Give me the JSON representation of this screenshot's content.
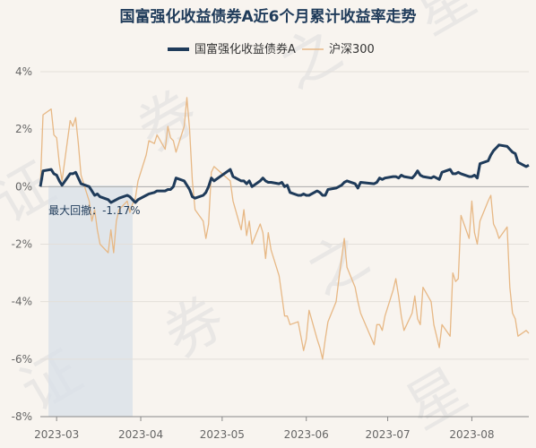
{
  "chart_data": {
    "type": "line",
    "title": "国富强化收益债券A近6个月累计收益率走势",
    "legend_position": "top-center",
    "grid": "horizontal",
    "ylim": [
      -8,
      4
    ],
    "yticks": [
      4,
      2,
      0,
      -2,
      -4,
      -6,
      -8
    ],
    "ytick_labels": [
      "4%",
      "2%",
      "0%",
      "-2%",
      "-4%",
      "-6%",
      "-8%"
    ],
    "xlim": [
      "2023-02-23",
      "2023-08-22"
    ],
    "xtick_labels": [
      "2023-03",
      "2023-04",
      "2023-05",
      "2023-06",
      "2023-07",
      "2023-08"
    ],
    "xtick_dates": [
      "2023-03-01",
      "2023-04-01",
      "2023-05-01",
      "2023-06-01",
      "2023-07-01",
      "2023-08-01"
    ],
    "series": [
      {
        "name": "国富强化收益债券A",
        "color": "#1f3b5a",
        "points": [
          [
            "2023-02-23",
            0.0
          ],
          [
            "2023-02-24",
            0.55
          ],
          [
            "2023-02-27",
            0.6
          ],
          [
            "2023-02-28",
            0.45
          ],
          [
            "2023-03-01",
            0.4
          ],
          [
            "2023-03-02",
            0.2
          ],
          [
            "2023-03-03",
            0.05
          ],
          [
            "2023-03-06",
            0.45
          ],
          [
            "2023-03-07",
            0.45
          ],
          [
            "2023-03-08",
            0.5
          ],
          [
            "2023-03-09",
            0.3
          ],
          [
            "2023-03-10",
            0.1
          ],
          [
            "2023-03-13",
            0.0
          ],
          [
            "2023-03-14",
            -0.15
          ],
          [
            "2023-03-15",
            -0.3
          ],
          [
            "2023-03-16",
            -0.25
          ],
          [
            "2023-03-17",
            -0.35
          ],
          [
            "2023-03-20",
            -0.45
          ],
          [
            "2023-03-21",
            -0.55
          ],
          [
            "2023-03-22",
            -0.5
          ],
          [
            "2023-03-23",
            -0.45
          ],
          [
            "2023-03-24",
            -0.4
          ],
          [
            "2023-03-27",
            -0.3
          ],
          [
            "2023-03-28",
            -0.35
          ],
          [
            "2023-03-29",
            -0.45
          ],
          [
            "2023-03-30",
            -0.55
          ],
          [
            "2023-03-31",
            -0.45
          ],
          [
            "2023-04-03",
            -0.3
          ],
          [
            "2023-04-04",
            -0.25
          ],
          [
            "2023-04-06",
            -0.2
          ],
          [
            "2023-04-07",
            -0.15
          ],
          [
            "2023-04-10",
            -0.15
          ],
          [
            "2023-04-11",
            -0.1
          ],
          [
            "2023-04-12",
            -0.1
          ],
          [
            "2023-04-13",
            0.0
          ],
          [
            "2023-04-14",
            0.3
          ],
          [
            "2023-04-17",
            0.2
          ],
          [
            "2023-04-18",
            0.05
          ],
          [
            "2023-04-19",
            -0.1
          ],
          [
            "2023-04-20",
            -0.35
          ],
          [
            "2023-04-21",
            -0.4
          ],
          [
            "2023-04-24",
            -0.3
          ],
          [
            "2023-04-25",
            -0.2
          ],
          [
            "2023-04-26",
            0.0
          ],
          [
            "2023-04-27",
            0.3
          ],
          [
            "2023-04-28",
            0.2
          ],
          [
            "2023-05-04",
            0.6
          ],
          [
            "2023-05-05",
            0.35
          ],
          [
            "2023-05-08",
            0.2
          ],
          [
            "2023-05-09",
            0.2
          ],
          [
            "2023-05-10",
            0.1
          ],
          [
            "2023-05-11",
            0.2
          ],
          [
            "2023-05-12",
            0.0
          ],
          [
            "2023-05-15",
            0.2
          ],
          [
            "2023-05-16",
            0.3
          ],
          [
            "2023-05-17",
            0.2
          ],
          [
            "2023-05-18",
            0.15
          ],
          [
            "2023-05-19",
            0.15
          ],
          [
            "2023-05-22",
            0.1
          ],
          [
            "2023-05-23",
            0.15
          ],
          [
            "2023-05-24",
            0.0
          ],
          [
            "2023-05-25",
            0.05
          ],
          [
            "2023-05-26",
            -0.2
          ],
          [
            "2023-05-29",
            -0.3
          ],
          [
            "2023-05-30",
            -0.3
          ],
          [
            "2023-05-31",
            -0.25
          ],
          [
            "2023-06-01",
            -0.3
          ],
          [
            "2023-06-02",
            -0.3
          ],
          [
            "2023-06-05",
            -0.15
          ],
          [
            "2023-06-06",
            -0.2
          ],
          [
            "2023-06-07",
            -0.3
          ],
          [
            "2023-06-08",
            -0.3
          ],
          [
            "2023-06-09",
            -0.1
          ],
          [
            "2023-06-12",
            -0.05
          ],
          [
            "2023-06-13",
            0.0
          ],
          [
            "2023-06-14",
            0.05
          ],
          [
            "2023-06-15",
            0.15
          ],
          [
            "2023-06-16",
            0.2
          ],
          [
            "2023-06-19",
            0.1
          ],
          [
            "2023-06-20",
            -0.05
          ],
          [
            "2023-06-21",
            0.15
          ],
          [
            "2023-06-26",
            0.1
          ],
          [
            "2023-06-27",
            0.15
          ],
          [
            "2023-06-28",
            0.3
          ],
          [
            "2023-06-29",
            0.25
          ],
          [
            "2023-06-30",
            0.3
          ],
          [
            "2023-07-03",
            0.35
          ],
          [
            "2023-07-04",
            0.35
          ],
          [
            "2023-07-05",
            0.3
          ],
          [
            "2023-07-06",
            0.4
          ],
          [
            "2023-07-07",
            0.35
          ],
          [
            "2023-07-10",
            0.3
          ],
          [
            "2023-07-11",
            0.4
          ],
          [
            "2023-07-12",
            0.55
          ],
          [
            "2023-07-13",
            0.4
          ],
          [
            "2023-07-14",
            0.35
          ],
          [
            "2023-07-17",
            0.3
          ],
          [
            "2023-07-18",
            0.35
          ],
          [
            "2023-07-19",
            0.3
          ],
          [
            "2023-07-20",
            0.25
          ],
          [
            "2023-07-21",
            0.5
          ],
          [
            "2023-07-24",
            0.6
          ],
          [
            "2023-07-25",
            0.45
          ],
          [
            "2023-07-26",
            0.45
          ],
          [
            "2023-07-27",
            0.5
          ],
          [
            "2023-07-28",
            0.45
          ],
          [
            "2023-07-31",
            0.35
          ],
          [
            "2023-08-01",
            0.35
          ],
          [
            "2023-08-02",
            0.4
          ],
          [
            "2023-08-03",
            0.3
          ],
          [
            "2023-08-04",
            0.8
          ],
          [
            "2023-08-07",
            0.9
          ],
          [
            "2023-08-08",
            1.1
          ],
          [
            "2023-08-09",
            1.25
          ],
          [
            "2023-08-10",
            1.35
          ],
          [
            "2023-08-11",
            1.45
          ],
          [
            "2023-08-14",
            1.4
          ],
          [
            "2023-08-15",
            1.3
          ],
          [
            "2023-08-16",
            1.2
          ],
          [
            "2023-08-17",
            1.15
          ],
          [
            "2023-08-18",
            0.85
          ],
          [
            "2023-08-21",
            0.7
          ],
          [
            "2023-08-22",
            0.75
          ]
        ]
      },
      {
        "name": "沪深300",
        "color": "#e7b885",
        "points": [
          [
            "2023-02-23",
            0.0
          ],
          [
            "2023-02-24",
            2.5
          ],
          [
            "2023-02-27",
            2.7
          ],
          [
            "2023-02-28",
            1.8
          ],
          [
            "2023-03-01",
            1.7
          ],
          [
            "2023-03-02",
            0.8
          ],
          [
            "2023-03-03",
            0.2
          ],
          [
            "2023-03-06",
            2.3
          ],
          [
            "2023-03-07",
            2.1
          ],
          [
            "2023-03-08",
            2.4
          ],
          [
            "2023-03-09",
            1.5
          ],
          [
            "2023-03-10",
            0.4
          ],
          [
            "2023-03-13",
            -0.5
          ],
          [
            "2023-03-14",
            -1.2
          ],
          [
            "2023-03-15",
            -0.8
          ],
          [
            "2023-03-16",
            -1.5
          ],
          [
            "2023-03-17",
            -2.0
          ],
          [
            "2023-03-20",
            -2.3
          ],
          [
            "2023-03-21",
            -1.5
          ],
          [
            "2023-03-22",
            -2.3
          ],
          [
            "2023-03-23",
            -1.2
          ],
          [
            "2023-03-24",
            -0.8
          ],
          [
            "2023-03-27",
            -0.5
          ],
          [
            "2023-03-28",
            -0.9
          ],
          [
            "2023-03-29",
            -0.6
          ],
          [
            "2023-03-30",
            -0.4
          ],
          [
            "2023-03-31",
            0.2
          ],
          [
            "2023-04-03",
            1.1
          ],
          [
            "2023-04-04",
            1.6
          ],
          [
            "2023-04-06",
            1.5
          ],
          [
            "2023-04-07",
            1.8
          ],
          [
            "2023-04-10",
            1.3
          ],
          [
            "2023-04-11",
            2.1
          ],
          [
            "2023-04-12",
            1.7
          ],
          [
            "2023-04-13",
            1.6
          ],
          [
            "2023-04-14",
            1.2
          ],
          [
            "2023-04-17",
            2.1
          ],
          [
            "2023-04-18",
            3.1
          ],
          [
            "2023-04-19",
            2.0
          ],
          [
            "2023-04-20",
            0.2
          ],
          [
            "2023-04-21",
            -0.8
          ],
          [
            "2023-04-24",
            -1.2
          ],
          [
            "2023-04-25",
            -1.8
          ],
          [
            "2023-04-26",
            -1.3
          ],
          [
            "2023-04-27",
            0.5
          ],
          [
            "2023-04-28",
            0.7
          ],
          [
            "2023-05-04",
            0.2
          ],
          [
            "2023-05-05",
            -0.5
          ],
          [
            "2023-05-08",
            -1.5
          ],
          [
            "2023-05-09",
            -0.8
          ],
          [
            "2023-05-10",
            -1.7
          ],
          [
            "2023-05-11",
            -1.2
          ],
          [
            "2023-05-12",
            -2.0
          ],
          [
            "2023-05-15",
            -1.3
          ],
          [
            "2023-05-16",
            -1.6
          ],
          [
            "2023-05-17",
            -2.5
          ],
          [
            "2023-05-18",
            -1.6
          ],
          [
            "2023-05-19",
            -2.2
          ],
          [
            "2023-05-22",
            -3.1
          ],
          [
            "2023-05-23",
            -3.8
          ],
          [
            "2023-05-24",
            -4.5
          ],
          [
            "2023-05-25",
            -4.5
          ],
          [
            "2023-05-26",
            -4.8
          ],
          [
            "2023-05-29",
            -4.7
          ],
          [
            "2023-05-30",
            -5.2
          ],
          [
            "2023-05-31",
            -5.7
          ],
          [
            "2023-06-01",
            -5.3
          ],
          [
            "2023-06-02",
            -4.3
          ],
          [
            "2023-06-05",
            -5.3
          ],
          [
            "2023-06-06",
            -5.6
          ],
          [
            "2023-06-07",
            -6.0
          ],
          [
            "2023-06-08",
            -5.3
          ],
          [
            "2023-06-09",
            -4.7
          ],
          [
            "2023-06-12",
            -4.0
          ],
          [
            "2023-06-13",
            -3.2
          ],
          [
            "2023-06-14",
            -2.5
          ],
          [
            "2023-06-15",
            -1.8
          ],
          [
            "2023-06-16",
            -2.8
          ],
          [
            "2023-06-19",
            -3.5
          ],
          [
            "2023-06-20",
            -4.0
          ],
          [
            "2023-06-21",
            -4.4
          ],
          [
            "2023-06-26",
            -5.5
          ],
          [
            "2023-06-27",
            -4.8
          ],
          [
            "2023-06-28",
            -4.8
          ],
          [
            "2023-06-29",
            -5.0
          ],
          [
            "2023-06-30",
            -4.5
          ],
          [
            "2023-07-03",
            -3.6
          ],
          [
            "2023-07-04",
            -3.2
          ],
          [
            "2023-07-05",
            -3.8
          ],
          [
            "2023-07-06",
            -4.5
          ],
          [
            "2023-07-07",
            -5.0
          ],
          [
            "2023-07-10",
            -4.4
          ],
          [
            "2023-07-11",
            -3.8
          ],
          [
            "2023-07-12",
            -4.6
          ],
          [
            "2023-07-13",
            -4.8
          ],
          [
            "2023-07-14",
            -3.5
          ],
          [
            "2023-07-17",
            -4.0
          ],
          [
            "2023-07-18",
            -4.8
          ],
          [
            "2023-07-19",
            -5.2
          ],
          [
            "2023-07-20",
            -5.6
          ],
          [
            "2023-07-21",
            -4.8
          ],
          [
            "2023-07-24",
            -5.2
          ],
          [
            "2023-07-25",
            -3.0
          ],
          [
            "2023-07-26",
            -3.3
          ],
          [
            "2023-07-27",
            -3.2
          ],
          [
            "2023-07-28",
            -1.0
          ],
          [
            "2023-07-31",
            -1.8
          ],
          [
            "2023-08-01",
            -0.5
          ],
          [
            "2023-08-02",
            -1.6
          ],
          [
            "2023-08-03",
            -2.0
          ],
          [
            "2023-08-04",
            -1.2
          ],
          [
            "2023-08-07",
            -0.5
          ],
          [
            "2023-08-08",
            -0.3
          ],
          [
            "2023-08-09",
            -1.3
          ],
          [
            "2023-08-10",
            -1.5
          ],
          [
            "2023-08-11",
            -1.8
          ],
          [
            "2023-08-14",
            -1.4
          ],
          [
            "2023-08-15",
            -3.5
          ],
          [
            "2023-08-16",
            -4.4
          ],
          [
            "2023-08-17",
            -4.6
          ],
          [
            "2023-08-18",
            -5.2
          ],
          [
            "2023-08-21",
            -5.0
          ],
          [
            "2023-08-22",
            -5.1
          ]
        ]
      }
    ],
    "annotations": [
      {
        "text": "最大回撤：-1.17%",
        "shaded_start": "2023-02-26",
        "shaded_end": "2023-03-29",
        "shaded_color": "#d9e1e8"
      }
    ],
    "watermark": "证券之星"
  }
}
